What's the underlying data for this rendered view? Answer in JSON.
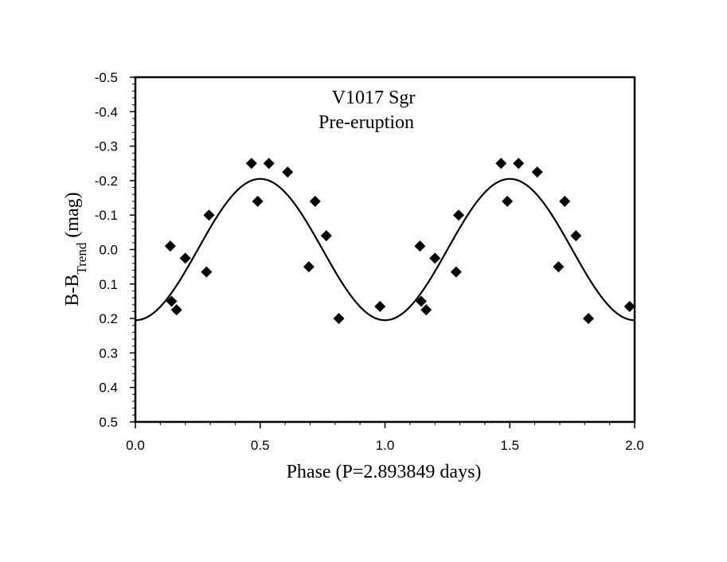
{
  "chart_data": {
    "type": "scatter",
    "title": "V1017 Sgr",
    "subtitle": "Pre-eruption",
    "xlabel": "Phase (P=2.893849 days)",
    "ylabel_main": "B-B",
    "ylabel_sub": "Trend",
    "ylabel_unit": " (mag)",
    "xlim": [
      0.0,
      2.0
    ],
    "ylim": [
      0.5,
      -0.5
    ],
    "y_inverted": true,
    "x_ticks": [
      0.0,
      0.5,
      1.0,
      1.5,
      2.0
    ],
    "x_tick_labels": [
      "0.0",
      "0.5",
      "1.0",
      "1.5",
      "2.0"
    ],
    "y_ticks": [
      -0.5,
      -0.4,
      -0.3,
      -0.2,
      -0.1,
      0.0,
      0.1,
      0.2,
      0.3,
      0.4,
      0.5
    ],
    "y_tick_labels": [
      "-0.5",
      "-0.4",
      "-0.3",
      "-0.2",
      "-0.1",
      "0.0",
      "0.1",
      "0.2",
      "0.3",
      "0.4",
      "0.5"
    ],
    "grid": false,
    "series": [
      {
        "name": "observations",
        "marker": "diamond",
        "color": "#000000",
        "x": [
          0.14,
          0.145,
          0.165,
          0.2,
          0.285,
          0.295,
          0.465,
          0.49,
          0.535,
          0.61,
          0.695,
          0.72,
          0.765,
          0.815,
          0.98,
          1.14,
          1.145,
          1.165,
          1.2,
          1.285,
          1.295,
          1.465,
          1.49,
          1.535,
          1.61,
          1.695,
          1.72,
          1.765,
          1.815,
          1.98
        ],
        "y": [
          -0.01,
          0.15,
          0.175,
          0.025,
          0.065,
          -0.1,
          -0.25,
          -0.14,
          -0.25,
          -0.225,
          0.05,
          -0.14,
          -0.04,
          0.2,
          0.165,
          -0.01,
          0.15,
          0.175,
          0.025,
          0.065,
          -0.1,
          -0.25,
          -0.14,
          -0.25,
          -0.225,
          0.05,
          -0.14,
          -0.04,
          0.2,
          0.165
        ]
      },
      {
        "name": "sinusoidal fit",
        "line": "solid",
        "color": "#000000",
        "model": "y = amplitude * cos(2*pi*x)",
        "amplitude": 0.205
      }
    ]
  }
}
